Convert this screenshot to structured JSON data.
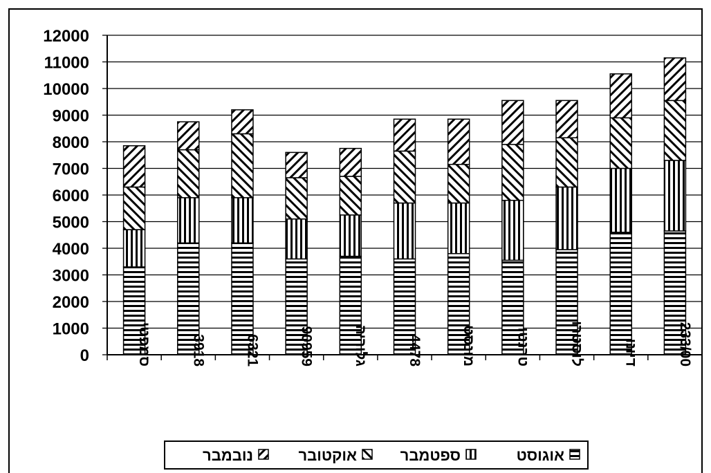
{
  "chart_data": {
    "type": "bar",
    "stacked": true,
    "categories": [
      "סמפטי",
      "3918",
      "6321",
      "90959",
      "גלוריה",
      "4478",
      "מונסט",
      "טרנטו",
      "לוסטרו",
      "דיונו",
      "233/00"
    ],
    "series": [
      {
        "name": "אוגוסט",
        "pattern": "horizontal",
        "values": [
          3300,
          4200,
          4200,
          3600,
          3700,
          3600,
          3800,
          3550,
          3950,
          4600,
          4650
        ]
      },
      {
        "name": "ספטמבר",
        "pattern": "vertical",
        "values": [
          1400,
          1700,
          1700,
          1500,
          1550,
          2100,
          1900,
          2250,
          2350,
          2400,
          2650
        ]
      },
      {
        "name": "אוקטובר",
        "pattern": "diagonal-up",
        "values": [
          1600,
          1800,
          2400,
          1550,
          1450,
          1950,
          1450,
          2100,
          1850,
          1900,
          2250
        ]
      },
      {
        "name": "נובמבר",
        "pattern": "diagonal-down",
        "values": [
          1550,
          1050,
          900,
          950,
          1050,
          1200,
          1700,
          1650,
          1400,
          1650,
          1600
        ]
      }
    ],
    "ylim": [
      0,
      12000
    ],
    "yticks": [
      0,
      1000,
      2000,
      3000,
      4000,
      5000,
      6000,
      7000,
      8000,
      9000,
      10000,
      11000,
      12000
    ],
    "grid": true,
    "legend_position": "bottom"
  }
}
